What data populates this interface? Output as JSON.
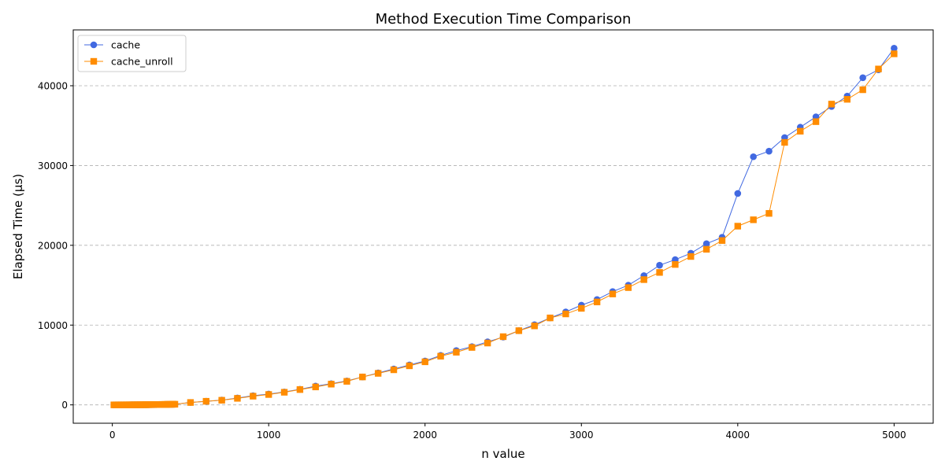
{
  "chart_data": {
    "type": "line",
    "title": "Method Execution Time Comparison",
    "xlabel": "n value",
    "ylabel": "Elapsed Time (µs)",
    "xlim": [
      -250,
      5250
    ],
    "ylim": [
      -2300,
      47000
    ],
    "xticks": [
      0,
      1000,
      2000,
      3000,
      4000,
      5000
    ],
    "yticks": [
      0,
      10000,
      20000,
      30000,
      40000
    ],
    "xtick_labels": [
      "0",
      "1000",
      "2000",
      "3000",
      "4000",
      "5000"
    ],
    "ytick_labels": [
      "0",
      "10000",
      "20000",
      "30000",
      "40000"
    ],
    "grid": "y-dashed",
    "legend_position": "top-left",
    "x": [
      10,
      20,
      30,
      40,
      50,
      60,
      70,
      80,
      90,
      100,
      110,
      120,
      130,
      140,
      150,
      160,
      170,
      180,
      190,
      200,
      210,
      220,
      230,
      240,
      250,
      260,
      270,
      280,
      290,
      300,
      310,
      320,
      330,
      340,
      350,
      360,
      370,
      380,
      390,
      400,
      500,
      600,
      700,
      800,
      900,
      1000,
      1100,
      1200,
      1300,
      1400,
      1500,
      1600,
      1700,
      1800,
      1900,
      2000,
      2100,
      2200,
      2300,
      2400,
      2500,
      2600,
      2700,
      2800,
      2900,
      3000,
      3100,
      3200,
      3300,
      3400,
      3500,
      3600,
      3700,
      3800,
      3900,
      4000,
      4100,
      4200,
      4300,
      4400,
      4500,
      4600,
      4700,
      4800,
      4900,
      5000
    ],
    "series": [
      {
        "name": "cache",
        "color": "#4169E1",
        "marker": "circle",
        "values": [
          0,
          0,
          0,
          1,
          1,
          2,
          2,
          3,
          4,
          5,
          6,
          7,
          8,
          10,
          11,
          13,
          14,
          16,
          18,
          20,
          22,
          24,
          26,
          29,
          31,
          34,
          36,
          39,
          42,
          45,
          48,
          51,
          54,
          58,
          61,
          65,
          68,
          72,
          76,
          80,
          300,
          450,
          600,
          860,
          1150,
          1350,
          1620,
          1950,
          2350,
          2650,
          3000,
          3500,
          4000,
          4500,
          5000,
          5500,
          6200,
          6800,
          7300,
          7900,
          8500,
          9300,
          10050,
          10900,
          11650,
          12500,
          13200,
          14200,
          15000,
          16200,
          17500,
          18200,
          19000,
          20200,
          21000,
          26500,
          31100,
          31800,
          33500,
          34800,
          36100,
          37400,
          38700,
          41000,
          42000,
          44700
        ]
      },
      {
        "name": "cache_unroll",
        "color": "#FF8C00",
        "marker": "square",
        "values": [
          0,
          0,
          0,
          1,
          1,
          2,
          2,
          3,
          4,
          5,
          6,
          7,
          8,
          10,
          11,
          13,
          14,
          16,
          18,
          20,
          22,
          24,
          26,
          29,
          31,
          34,
          36,
          39,
          42,
          45,
          48,
          51,
          54,
          58,
          61,
          65,
          68,
          72,
          76,
          80,
          300,
          450,
          580,
          820,
          1090,
          1300,
          1580,
          1920,
          2250,
          2600,
          2950,
          3500,
          3950,
          4400,
          4900,
          5400,
          6100,
          6600,
          7200,
          7750,
          8550,
          9300,
          9900,
          10900,
          11400,
          12100,
          12900,
          13900,
          14700,
          15700,
          16600,
          17600,
          18600,
          19500,
          20600,
          22400,
          23200,
          24000,
          32900,
          34300,
          35500,
          37700,
          38300,
          39500,
          42100,
          44000
        ]
      }
    ]
  }
}
